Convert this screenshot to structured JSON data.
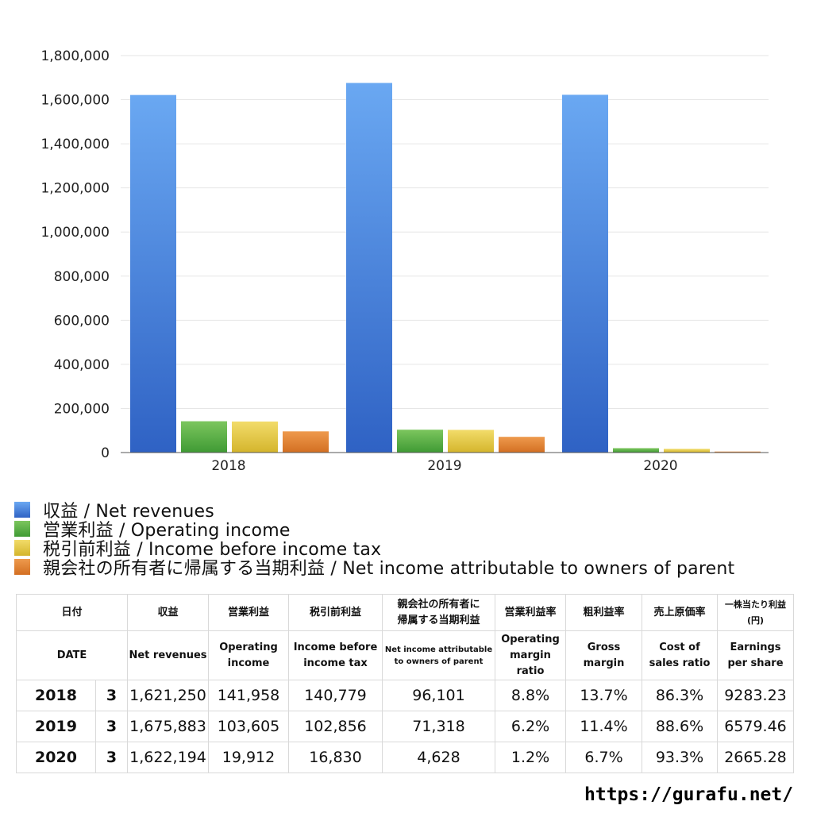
{
  "chart_data": {
    "type": "bar",
    "categories": [
      "2018",
      "2019",
      "2020"
    ],
    "series": [
      {
        "name": "収益 / Net revenues",
        "values": [
          1621250,
          1675883,
          1622194
        ],
        "color_top": "#6aa8f2",
        "color_bottom": "#2f62c4"
      },
      {
        "name": "営業利益 / Operating income",
        "values": [
          141958,
          103605,
          19912
        ],
        "color_top": "#7cc65e",
        "color_bottom": "#3f9a34"
      },
      {
        "name": "税引前利益 / Income before income tax",
        "values": [
          140779,
          102856,
          16830
        ],
        "color_top": "#f2dc6a",
        "color_bottom": "#d4b52c"
      },
      {
        "name": "親会社の所有者に帰属する当期利益 / Net income attributable to owners of parent",
        "values": [
          96101,
          71318,
          4628
        ],
        "color_top": "#ee9a4d",
        "color_bottom": "#d36f22"
      }
    ],
    "ylim": [
      0,
      1800000
    ],
    "yticks": [
      0,
      200000,
      400000,
      600000,
      800000,
      1000000,
      1200000,
      1400000,
      1600000,
      1800000
    ],
    "ytick_labels": [
      "0",
      "200,000",
      "400,000",
      "600,000",
      "800,000",
      "1,000,000",
      "1,200,000",
      "1,400,000",
      "1,600,000",
      "1,800,000"
    ],
    "grid": true,
    "legend_position": "bottom-left"
  },
  "legend": [
    {
      "label": "収益 / Net revenues",
      "color": "#3f7fdc"
    },
    {
      "label": "営業利益 / Operating income",
      "color": "#55ad42"
    },
    {
      "label": "税引前利益 / Income before income tax",
      "color": "#e2c640"
    },
    {
      "label": "親会社の所有者に帰属する当期利益 / Net income attributable to owners of parent",
      "color": "#e2802f"
    }
  ],
  "table": {
    "header_jp": {
      "date": "日付",
      "revenues": "収益",
      "operating": "営業利益",
      "pretax": "税引前利益",
      "netincome_l1": "親会社の所有者に",
      "netincome_l2": "帰属する当期利益",
      "op_margin": "営業利益率",
      "gross_margin": "粗利益率",
      "cost_ratio": "売上原価率",
      "eps_l1": "一株当たり利益",
      "eps_l2": "(円)"
    },
    "header_en": {
      "date": "DATE",
      "revenues": "Net revenues",
      "operating_l1": "Operating",
      "operating_l2": "income",
      "pretax_l1": "Income before",
      "pretax_l2": "income tax",
      "netincome_l1": "Net income attributable",
      "netincome_l2": "to owners of parent",
      "op_margin_l1": "Operating",
      "op_margin_l2": "margin",
      "op_margin_l3": "ratio",
      "gross_l1": "Gross",
      "gross_l2": "margin",
      "cost_l1": "Cost of",
      "cost_l2": "sales ratio",
      "eps_l1": "Earnings",
      "eps_l2": "per share"
    },
    "rows": [
      {
        "year": "2018",
        "month": "3",
        "revenues": "1,621,250",
        "operating": "141,958",
        "pretax": "140,779",
        "netincome": "96,101",
        "op_margin": "8.8%",
        "gross_margin": "13.7%",
        "cost_ratio": "86.3%",
        "eps": "9283.23"
      },
      {
        "year": "2019",
        "month": "3",
        "revenues": "1,675,883",
        "operating": "103,605",
        "pretax": "102,856",
        "netincome": "71,318",
        "op_margin": "6.2%",
        "gross_margin": "11.4%",
        "cost_ratio": "88.6%",
        "eps": "6579.46"
      },
      {
        "year": "2020",
        "month": "3",
        "revenues": "1,622,194",
        "operating": "19,912",
        "pretax": "16,830",
        "netincome": "4,628",
        "op_margin": "1.2%",
        "gross_margin": "6.7%",
        "cost_ratio": "93.3%",
        "eps": "2665.28"
      }
    ]
  },
  "source": "https://gurafu.net/"
}
